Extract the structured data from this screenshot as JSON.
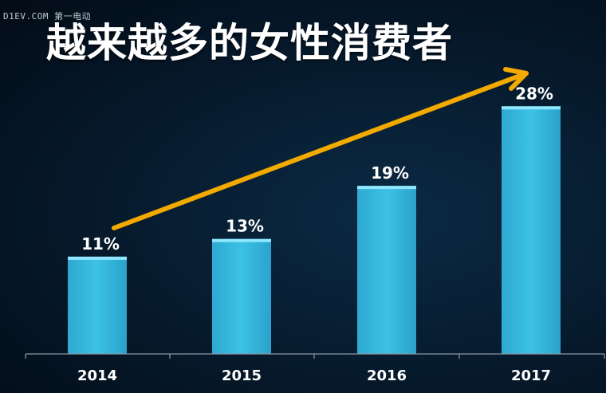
{
  "watermark": "D1EV.COM 第一电动",
  "chart_data": {
    "type": "bar",
    "title": "越来越多的女性消费者",
    "categories": [
      "2014",
      "2015",
      "2016",
      "2017"
    ],
    "values": [
      11,
      13,
      19,
      28
    ],
    "data_labels": [
      "11%",
      "13%",
      "19%",
      "28%"
    ],
    "ylim": [
      0,
      31
    ],
    "grid": false,
    "legend": "none",
    "annotation": "trend-arrow",
    "colors": {
      "bar": "#35b8de",
      "bar_top": "#8fe6ff",
      "arrow": "#f2a900",
      "text": "#ffffff",
      "axis": "#8a97a3"
    }
  }
}
